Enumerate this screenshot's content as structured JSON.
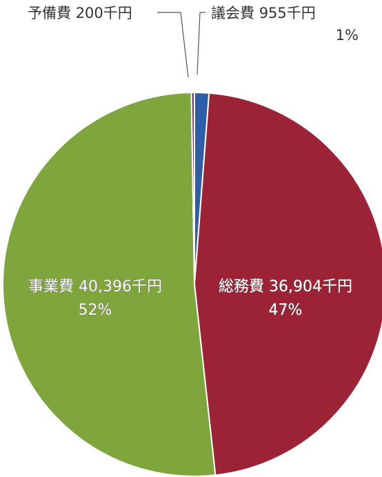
{
  "chart_data": {
    "type": "pie",
    "title": "",
    "unit": "千円",
    "slices": [
      {
        "name": "議会費",
        "value": 955,
        "value_label": "955千円",
        "percent_label": "1%",
        "color": "#2f5ea8"
      },
      {
        "name": "総務費",
        "value": 36904,
        "value_label": "36,904千円",
        "percent_label": "47%",
        "color": "#9c2236"
      },
      {
        "name": "事業費",
        "value": 40396,
        "value_label": "40,396千円",
        "percent_label": "52%",
        "color": "#7fa63d"
      },
      {
        "name": "予備費",
        "value": 200,
        "value_label": "200千円",
        "percent_label": "",
        "color": "#6b3f83"
      }
    ]
  }
}
